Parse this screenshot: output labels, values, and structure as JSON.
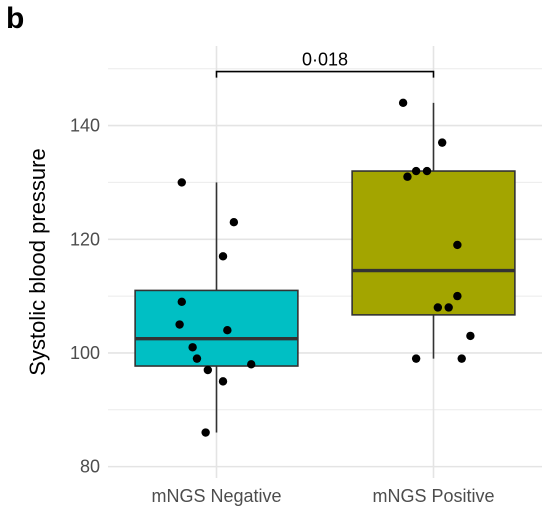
{
  "panel_label": "b",
  "chart_data": {
    "type": "box",
    "title": "",
    "xlabel": "",
    "ylabel": "Systolic blood pressure",
    "ylim": [
      78,
      154
    ],
    "y_ticks": [
      80,
      100,
      120,
      140
    ],
    "y_minor_ticks": [
      90,
      110,
      130,
      150
    ],
    "grid": true,
    "legend": "none",
    "categories": [
      "mNGS Negative",
      "mNGS Positive"
    ],
    "boxes": [
      {
        "category": "mNGS Negative",
        "color": "#00BFC4",
        "min": 86,
        "q1": 97.7,
        "median": 102.5,
        "q3": 111,
        "max": 130
      },
      {
        "category": "mNGS Positive",
        "color": "#A3A500",
        "min": 99,
        "q1": 106.7,
        "median": 114.5,
        "q3": 132,
        "max": 144
      }
    ],
    "points": [
      {
        "category": "mNGS Negative",
        "jitter": -0.16,
        "y": 130
      },
      {
        "category": "mNGS Negative",
        "jitter": 0.08,
        "y": 123
      },
      {
        "category": "mNGS Negative",
        "jitter": 0.03,
        "y": 117
      },
      {
        "category": "mNGS Negative",
        "jitter": -0.16,
        "y": 109
      },
      {
        "category": "mNGS Negative",
        "jitter": -0.17,
        "y": 105
      },
      {
        "category": "mNGS Negative",
        "jitter": 0.05,
        "y": 104
      },
      {
        "category": "mNGS Negative",
        "jitter": -0.11,
        "y": 101
      },
      {
        "category": "mNGS Negative",
        "jitter": -0.09,
        "y": 99
      },
      {
        "category": "mNGS Negative",
        "jitter": 0.16,
        "y": 98
      },
      {
        "category": "mNGS Negative",
        "jitter": -0.04,
        "y": 97
      },
      {
        "category": "mNGS Negative",
        "jitter": 0.03,
        "y": 95
      },
      {
        "category": "mNGS Negative",
        "jitter": -0.05,
        "y": 86
      },
      {
        "category": "mNGS Positive",
        "jitter": -0.14,
        "y": 144
      },
      {
        "category": "mNGS Positive",
        "jitter": 0.04,
        "y": 137
      },
      {
        "category": "mNGS Positive",
        "jitter": -0.08,
        "y": 132
      },
      {
        "category": "mNGS Positive",
        "jitter": -0.03,
        "y": 132
      },
      {
        "category": "mNGS Positive",
        "jitter": -0.12,
        "y": 131
      },
      {
        "category": "mNGS Positive",
        "jitter": 0.11,
        "y": 119
      },
      {
        "category": "mNGS Positive",
        "jitter": 0.11,
        "y": 110
      },
      {
        "category": "mNGS Positive",
        "jitter": 0.07,
        "y": 108
      },
      {
        "category": "mNGS Positive",
        "jitter": 0.02,
        "y": 108
      },
      {
        "category": "mNGS Positive",
        "jitter": 0.17,
        "y": 103
      },
      {
        "category": "mNGS Positive",
        "jitter": -0.08,
        "y": 99
      },
      {
        "category": "mNGS Positive",
        "jitter": 0.13,
        "y": 99
      }
    ],
    "annotations": [
      {
        "text": "0·018",
        "from": "mNGS Negative",
        "to": "mNGS Positive",
        "y": 149.5
      }
    ]
  }
}
